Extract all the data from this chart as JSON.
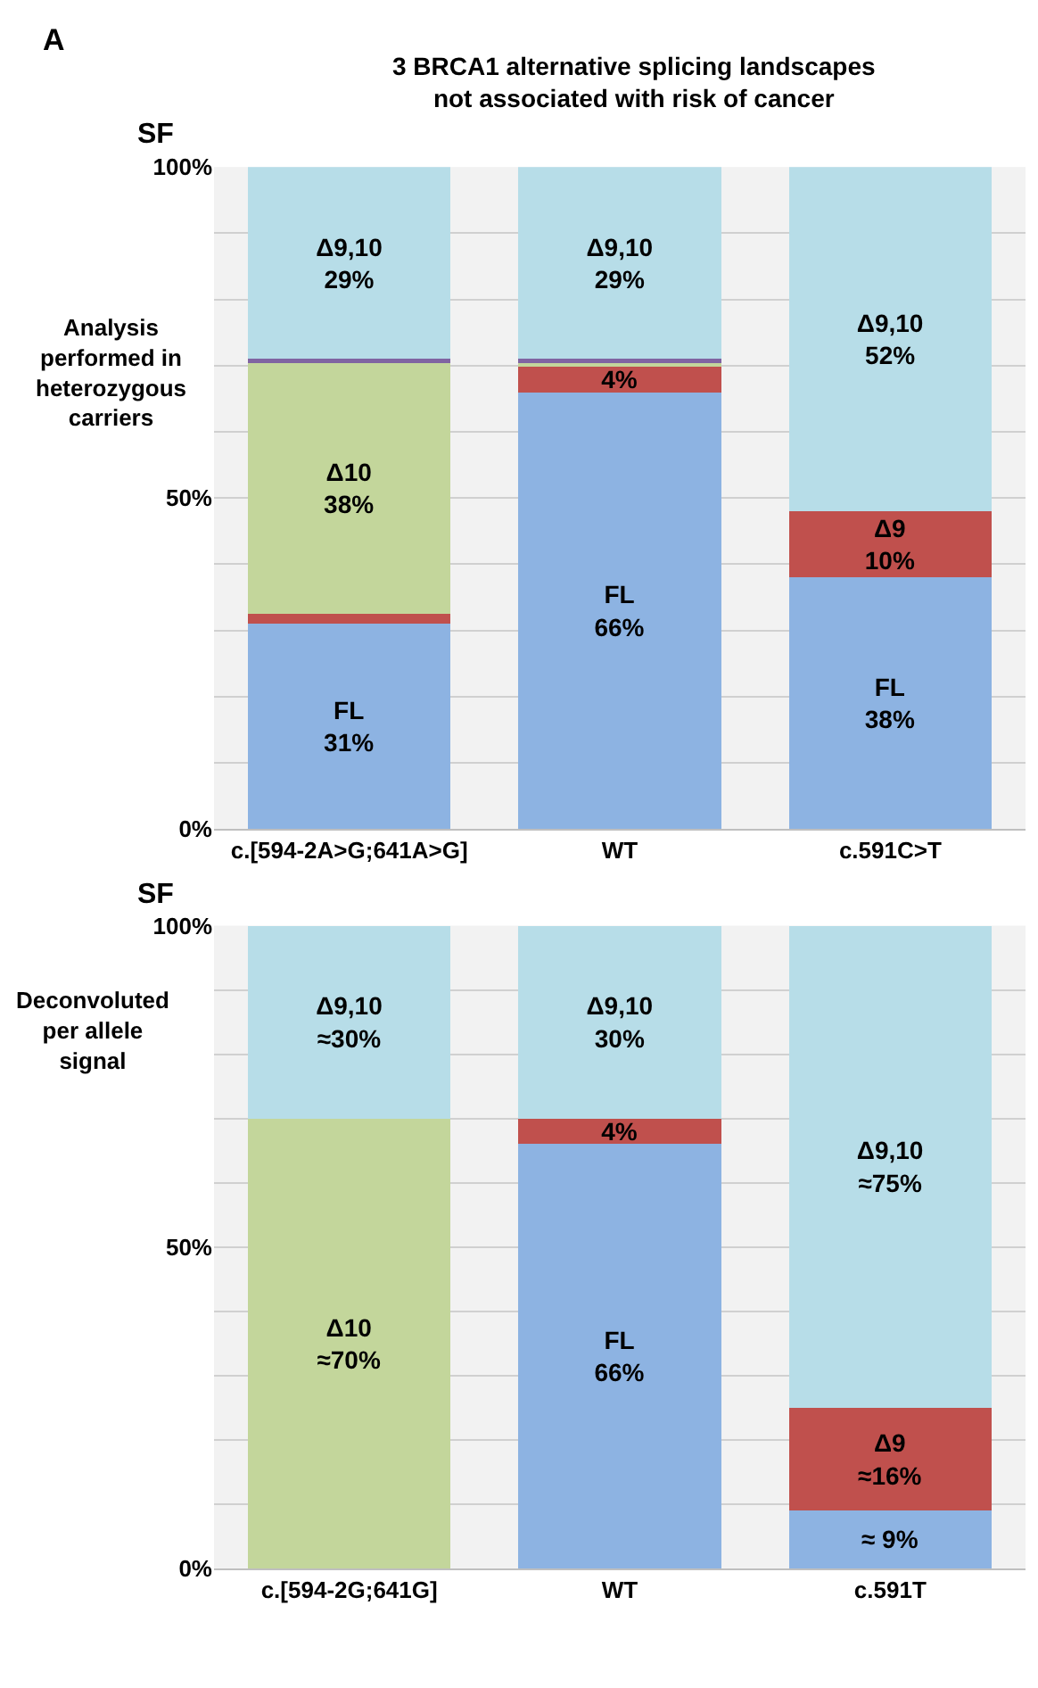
{
  "chart_data": [
    {
      "type": "bar",
      "stacked": true,
      "title": "3 BRCA1 alternative splicing landscapes\nnot associated with risk of cancer",
      "ylabel": "SF",
      "grid": "y",
      "categories": [
        "c.[594-2A>G;641A>G]",
        "WT",
        "c.591C>T"
      ],
      "ylim": [
        0,
        100
      ],
      "yticks": [
        {
          "value": 0,
          "label": "0%"
        },
        {
          "value": 10,
          "label": null
        },
        {
          "value": 20,
          "label": null
        },
        {
          "value": 30,
          "label": null
        },
        {
          "value": 40,
          "label": null
        },
        {
          "value": 50,
          "label": "50%"
        },
        {
          "value": 60,
          "label": null
        },
        {
          "value": 70,
          "label": null
        },
        {
          "value": 80,
          "label": null
        },
        {
          "value": 90,
          "label": null
        },
        {
          "value": 100,
          "label": "100%"
        }
      ],
      "series": [
        {
          "color": "#8db3e2",
          "values": [
            31,
            66,
            38
          ],
          "value_labels": [
            "FL\n31%",
            "FL\n66%",
            "FL\n38%"
          ]
        },
        {
          "color": "#c0504d",
          "values": [
            1.5,
            4,
            10
          ],
          "value_labels": [
            null,
            "4%",
            "Δ9\n10%"
          ]
        },
        {
          "color": "#c3d69b",
          "values": [
            38,
            0.5,
            0
          ],
          "value_labels": [
            "Δ10\n38%",
            null,
            null
          ]
        },
        {
          "color": "#8064a2",
          "values": [
            0.5,
            0.5,
            0
          ],
          "value_labels": [
            null,
            null,
            null
          ]
        },
        {
          "color": "#b7dde8",
          "values": [
            29,
            29,
            52
          ],
          "value_labels": [
            "Δ9,10\n29%",
            "Δ9,10\n29%",
            "Δ9,10\n52%"
          ]
        }
      ],
      "annotations": [
        "A",
        "Analysis\nperformed in\nheterozygous\ncarriers"
      ]
    },
    {
      "type": "bar",
      "stacked": true,
      "ylabel": "SF",
      "grid": "y",
      "categories": [
        "c.[594-2G;641G]",
        "WT",
        "c.591T"
      ],
      "ylim": [
        0,
        100
      ],
      "yticks": [
        {
          "value": 0,
          "label": "0%"
        },
        {
          "value": 10,
          "label": null
        },
        {
          "value": 20,
          "label": null
        },
        {
          "value": 30,
          "label": null
        },
        {
          "value": 40,
          "label": null
        },
        {
          "value": 50,
          "label": "50%"
        },
        {
          "value": 60,
          "label": null
        },
        {
          "value": 70,
          "label": null
        },
        {
          "value": 80,
          "label": null
        },
        {
          "value": 90,
          "label": null
        },
        {
          "value": 100,
          "label": "100%"
        }
      ],
      "series": [
        {
          "color": "#8db3e2",
          "values": [
            0,
            66,
            9
          ],
          "value_labels": [
            null,
            "FL\n66%",
            "≈ 9%"
          ]
        },
        {
          "color": "#c0504d",
          "values": [
            0,
            4,
            16
          ],
          "value_labels": [
            null,
            "4%",
            "Δ9\n≈16%"
          ]
        },
        {
          "color": "#c3d69b",
          "values": [
            70,
            0,
            0
          ],
          "value_labels": [
            "Δ10\n≈70%",
            null,
            null
          ]
        },
        {
          "color": "#b7dde8",
          "values": [
            30,
            30,
            75
          ],
          "value_labels": [
            "Δ9,10\n≈30%",
            "Δ9,10\n30%",
            "Δ9,10\n≈75%"
          ]
        }
      ],
      "annotations": [
        "Deconvoluted\nper allele\nsignal"
      ]
    }
  ]
}
